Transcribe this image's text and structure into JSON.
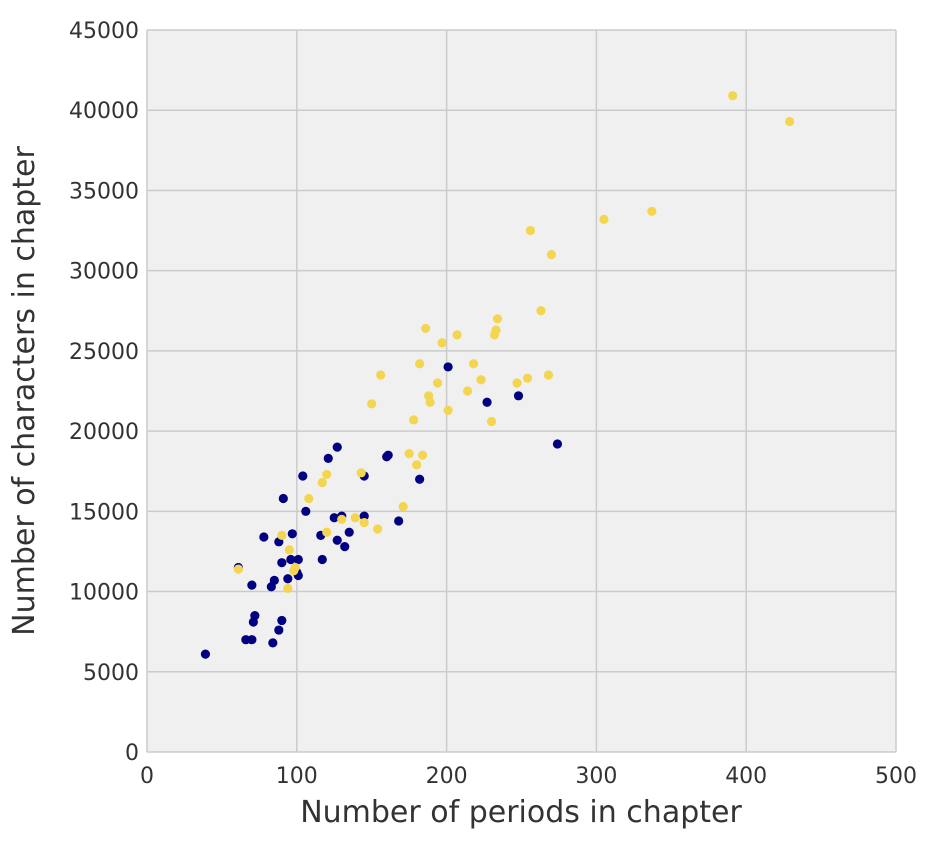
{
  "chart_data": {
    "type": "scatter",
    "title": "",
    "xlabel": "Number of periods in chapter",
    "ylabel": "Number of characters in chapter",
    "xlim": [
      0,
      500
    ],
    "ylim": [
      0,
      45000
    ],
    "xticks": [
      0,
      100,
      200,
      300,
      400,
      500
    ],
    "yticks": [
      0,
      5000,
      10000,
      15000,
      20000,
      25000,
      30000,
      35000,
      40000,
      45000
    ],
    "grid": true,
    "background": "#f0f0f0",
    "grid_color": "#cbcbcb",
    "series": [
      {
        "color": "#000080",
        "points": [
          [
            39,
            6100
          ],
          [
            61,
            11500
          ],
          [
            66,
            7000
          ],
          [
            70,
            7000
          ],
          [
            70,
            10400
          ],
          [
            71,
            8100
          ],
          [
            72,
            8500
          ],
          [
            78,
            13400
          ],
          [
            83,
            10300
          ],
          [
            84,
            6800
          ],
          [
            85,
            10700
          ],
          [
            88,
            7600
          ],
          [
            88,
            13100
          ],
          [
            90,
            11800
          ],
          [
            90,
            8200
          ],
          [
            91,
            15800
          ],
          [
            94,
            10800
          ],
          [
            96,
            12000
          ],
          [
            97,
            13600
          ],
          [
            100,
            11200
          ],
          [
            101,
            12000
          ],
          [
            101,
            11000
          ],
          [
            104,
            17200
          ],
          [
            106,
            15000
          ],
          [
            116,
            13500
          ],
          [
            117,
            12000
          ],
          [
            121,
            18300
          ],
          [
            125,
            14600
          ],
          [
            127,
            13200
          ],
          [
            127,
            19000
          ],
          [
            130,
            14700
          ],
          [
            132,
            12800
          ],
          [
            135,
            13700
          ],
          [
            145,
            14700
          ],
          [
            145,
            17200
          ],
          [
            160,
            18400
          ],
          [
            161,
            18500
          ],
          [
            168,
            14400
          ],
          [
            182,
            17000
          ],
          [
            201,
            24000
          ],
          [
            227,
            21800
          ],
          [
            248,
            22200
          ],
          [
            274,
            19200
          ]
        ]
      },
      {
        "color": "#f3d54f",
        "points": [
          [
            61,
            11400
          ],
          [
            90,
            13500
          ],
          [
            94,
            10200
          ],
          [
            95,
            12600
          ],
          [
            98,
            11300
          ],
          [
            99,
            11500
          ],
          [
            108,
            15800
          ],
          [
            117,
            16800
          ],
          [
            120,
            17300
          ],
          [
            120,
            13700
          ],
          [
            130,
            14500
          ],
          [
            139,
            14600
          ],
          [
            143,
            17400
          ],
          [
            145,
            14300
          ],
          [
            150,
            21700
          ],
          [
            154,
            13900
          ],
          [
            156,
            23500
          ],
          [
            171,
            15300
          ],
          [
            175,
            18600
          ],
          [
            178,
            20700
          ],
          [
            180,
            17900
          ],
          [
            182,
            24200
          ],
          [
            184,
            18500
          ],
          [
            186,
            26400
          ],
          [
            188,
            22200
          ],
          [
            189,
            21800
          ],
          [
            194,
            23000
          ],
          [
            197,
            25500
          ],
          [
            201,
            21300
          ],
          [
            207,
            26000
          ],
          [
            214,
            22500
          ],
          [
            218,
            24200
          ],
          [
            223,
            23200
          ],
          [
            230,
            20600
          ],
          [
            232,
            26000
          ],
          [
            233,
            26300
          ],
          [
            234,
            27000
          ],
          [
            247,
            23000
          ],
          [
            254,
            23300
          ],
          [
            256,
            32500
          ],
          [
            263,
            27500
          ],
          [
            268,
            23500
          ],
          [
            270,
            31000
          ],
          [
            305,
            33200
          ],
          [
            337,
            33700
          ],
          [
            391,
            40900
          ],
          [
            429,
            39300
          ]
        ]
      }
    ]
  }
}
